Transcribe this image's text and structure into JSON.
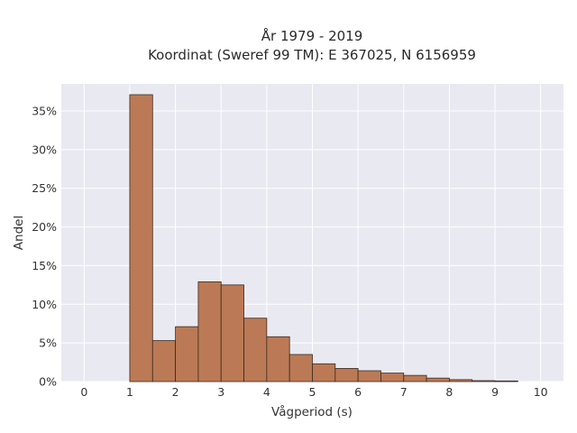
{
  "chart_data": {
    "type": "bar",
    "title_line1": "År 1979 - 2019",
    "title_line2": "Koordinat (Sweref 99 TM): E 367025, N 6156959",
    "xlabel": "Vågperiod (s)",
    "ylabel": "Andel",
    "xlim": [
      -0.5,
      10.5
    ],
    "ylim": [
      0,
      38.5
    ],
    "x_ticks": [
      "0",
      "1",
      "2",
      "3",
      "4",
      "5",
      "6",
      "7",
      "8",
      "9",
      "10"
    ],
    "y_ticks": [
      "0%",
      "5%",
      "10%",
      "15%",
      "20%",
      "25%",
      "30%",
      "35%"
    ],
    "bin_width": 0.5,
    "bins": [
      {
        "x0": 1.0,
        "value": 37.1
      },
      {
        "x0": 1.5,
        "value": 5.3
      },
      {
        "x0": 2.0,
        "value": 7.1
      },
      {
        "x0": 2.5,
        "value": 12.9
      },
      {
        "x0": 3.0,
        "value": 12.5
      },
      {
        "x0": 3.5,
        "value": 8.2
      },
      {
        "x0": 4.0,
        "value": 5.8
      },
      {
        "x0": 4.5,
        "value": 3.5
      },
      {
        "x0": 5.0,
        "value": 2.3
      },
      {
        "x0": 5.5,
        "value": 1.7
      },
      {
        "x0": 6.0,
        "value": 1.4
      },
      {
        "x0": 6.5,
        "value": 1.1
      },
      {
        "x0": 7.0,
        "value": 0.8
      },
      {
        "x0": 7.5,
        "value": 0.45
      },
      {
        "x0": 8.0,
        "value": 0.25
      },
      {
        "x0": 8.5,
        "value": 0.12
      },
      {
        "x0": 9.0,
        "value": 0.08
      }
    ],
    "grid": true,
    "legend": "none",
    "colors": {
      "bar_fill": "#bb7a55",
      "bar_stroke": "#3a2a22",
      "plot_background": "#e9e9f1",
      "grid": "#ffffff"
    }
  }
}
